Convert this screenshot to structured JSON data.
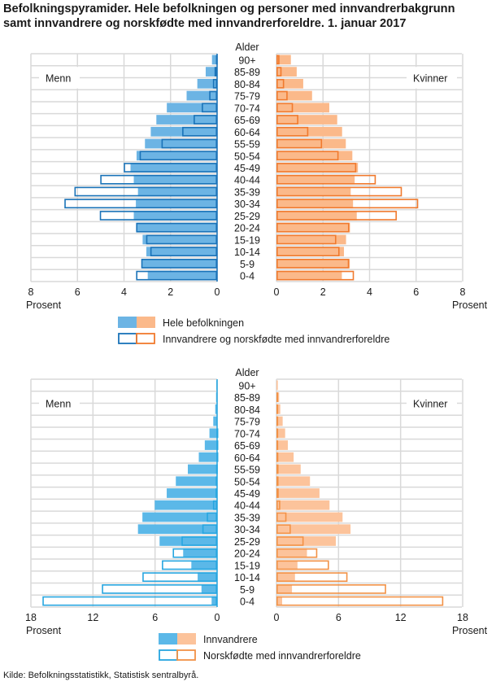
{
  "title_line1": "Befolkningspyramider. Hele befolkningen og personer med innvandrerbakgrunn",
  "title_line2": "samt innvandrere og norskfødte med innvandrerforeldre. 1. januar 2017",
  "source": "Kilde: Befolkningsstatistikk, Statistisk sentralbyrå.",
  "colors": {
    "top_male_fill": "#6cb4e4",
    "top_male_outline": "#1a73b8",
    "top_female_fill": "#fbb98a",
    "top_female_outline": "#f07a2e",
    "bottom_male_fill": "#5bb8e8",
    "bottom_male_outline": "#27a6e0",
    "bottom_female_fill": "#fcc39b",
    "bottom_female_outline": "#f29247"
  },
  "chart_data": [
    {
      "type": "bar",
      "subtype": "population-pyramid",
      "age_label": "Alder",
      "left_label": "Menn",
      "right_label": "Kvinner",
      "xlabel": "Prosent",
      "xlim": [
        0,
        8
      ],
      "ticks": [
        "0",
        "2",
        "4",
        "6",
        "8"
      ],
      "grid": true,
      "categories": [
        "90+",
        "85-89",
        "80-84",
        "75-79",
        "70-74",
        "65-69",
        "60-64",
        "55-59",
        "50-54",
        "45-49",
        "40-44",
        "35-39",
        "30-34",
        "25-29",
        "20-24",
        "15-19",
        "10-14",
        "5-9",
        "0-4"
      ],
      "series": [
        {
          "name": "Hele befolkningen",
          "style": "filled",
          "male": [
            0.22,
            0.49,
            0.85,
            1.31,
            2.16,
            2.61,
            2.85,
            3.1,
            3.46,
            3.72,
            3.58,
            3.4,
            3.49,
            3.58,
            3.44,
            3.2,
            3.04,
            3.22,
            2.98
          ],
          "female": [
            0.62,
            0.87,
            1.15,
            1.53,
            2.27,
            2.61,
            2.82,
            2.98,
            3.26,
            3.5,
            3.36,
            3.19,
            3.29,
            3.45,
            3.16,
            2.99,
            2.9,
            3.15,
            2.81
          ]
        },
        {
          "name": "Innvandrere og norskfødte med innvandrerforeldre",
          "style": "outline",
          "male": [
            0.05,
            0.11,
            0.18,
            0.34,
            0.66,
            1.01,
            1.5,
            2.39,
            3.33,
            4.01,
            5.02,
            6.13,
            6.56,
            5.04,
            3.48,
            3.05,
            2.87,
            3.26,
            3.48
          ],
          "female": [
            0.13,
            0.22,
            0.33,
            0.48,
            0.71,
            0.94,
            1.37,
            1.96,
            2.67,
            3.43,
            4.27,
            5.39,
            6.09,
            5.17,
            3.13,
            2.57,
            2.71,
            3.12,
            3.33
          ]
        }
      ],
      "legend_position": "bottom"
    },
    {
      "type": "bar",
      "subtype": "population-pyramid",
      "age_label": "Alder",
      "left_label": "Menn",
      "right_label": "Kvinner",
      "xlabel": "Prosent",
      "xlim": [
        0,
        18
      ],
      "ticks": [
        "0",
        "6",
        "12",
        "18"
      ],
      "grid": true,
      "categories": [
        "90+",
        "85-89",
        "80-84",
        "75-79",
        "70-74",
        "65-69",
        "60-64",
        "55-59",
        "50-54",
        "45-49",
        "40-44",
        "35-39",
        "30-34",
        "25-29",
        "20-24",
        "15-19",
        "10-14",
        "5-9",
        "0-4"
      ],
      "series": [
        {
          "name": "Innvandrere",
          "style": "filled",
          "male": [
            0.08,
            0.1,
            0.18,
            0.37,
            0.74,
            1.19,
            1.77,
            2.83,
            3.99,
            4.87,
            6.03,
            7.22,
            7.65,
            5.56,
            3.28,
            2.49,
            1.88,
            1.51,
            0.53
          ],
          "female": [
            0.13,
            0.26,
            0.37,
            0.6,
            0.84,
            1.1,
            1.66,
            2.34,
            3.24,
            4.16,
            5.13,
            6.39,
            7.16,
            5.74,
            2.95,
            2.03,
            1.79,
            1.5,
            0.55
          ]
        },
        {
          "name": "Norskfødte med innvandrerforeldre",
          "style": "outline",
          "male": [
            0.0,
            0.0,
            0.01,
            0.02,
            0.05,
            0.05,
            0.05,
            0.1,
            0.13,
            0.15,
            0.4,
            1.0,
            1.43,
            3.44,
            4.29,
            5.34,
            7.22,
            11.14,
            16.88
          ],
          "female": [
            0.02,
            0.03,
            0.05,
            0.08,
            0.12,
            0.15,
            0.18,
            0.2,
            0.2,
            0.22,
            0.37,
            0.97,
            1.39,
            2.63,
            3.95,
            5.08,
            6.87,
            10.6,
            16.13
          ]
        }
      ],
      "legend_position": "bottom"
    }
  ]
}
